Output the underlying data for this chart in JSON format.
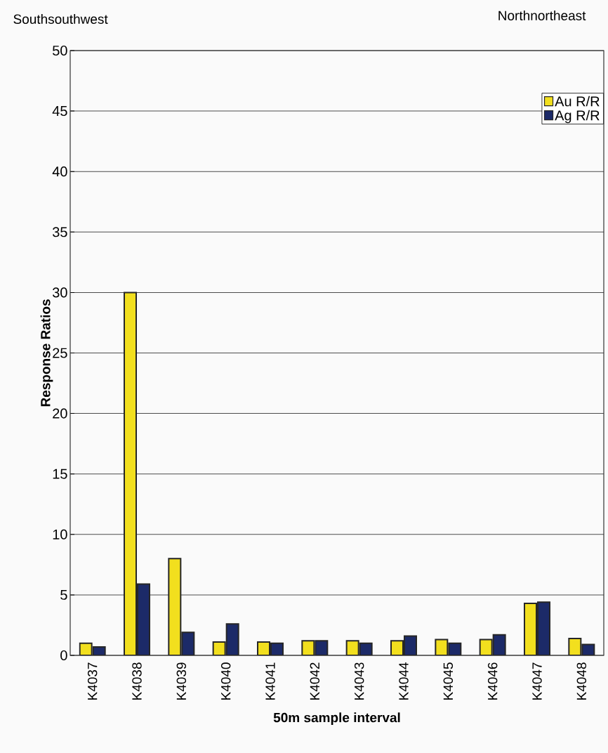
{
  "chart_data": {
    "type": "bar",
    "xlabel": "50m sample interval",
    "ylabel": "Response Ratios",
    "annotations": [
      "Southsouthwest",
      "Northnortheast"
    ],
    "categories": [
      "K4037",
      "K4038",
      "K4039",
      "K4040",
      "K4041",
      "K4042",
      "K4043",
      "K4044",
      "K4045",
      "K4046",
      "K4047",
      "K4048"
    ],
    "series": [
      {
        "name": "Au R/R",
        "color": "#f2df1e",
        "values": [
          1.0,
          30,
          8.0,
          1.1,
          1.1,
          1.2,
          1.2,
          1.2,
          1.3,
          1.3,
          4.3,
          1.4
        ]
      },
      {
        "name": "Ag R/R",
        "color": "#1c2a68",
        "values": [
          0.7,
          5.9,
          1.9,
          2.6,
          1.0,
          1.2,
          1.0,
          1.6,
          1.0,
          1.7,
          4.4,
          0.9
        ]
      }
    ],
    "ylim": [
      0,
      50
    ],
    "yticks": [
      0,
      5,
      10,
      15,
      20,
      25,
      30,
      35,
      40,
      45,
      50
    ],
    "grid": "y",
    "legend": "top right"
  }
}
